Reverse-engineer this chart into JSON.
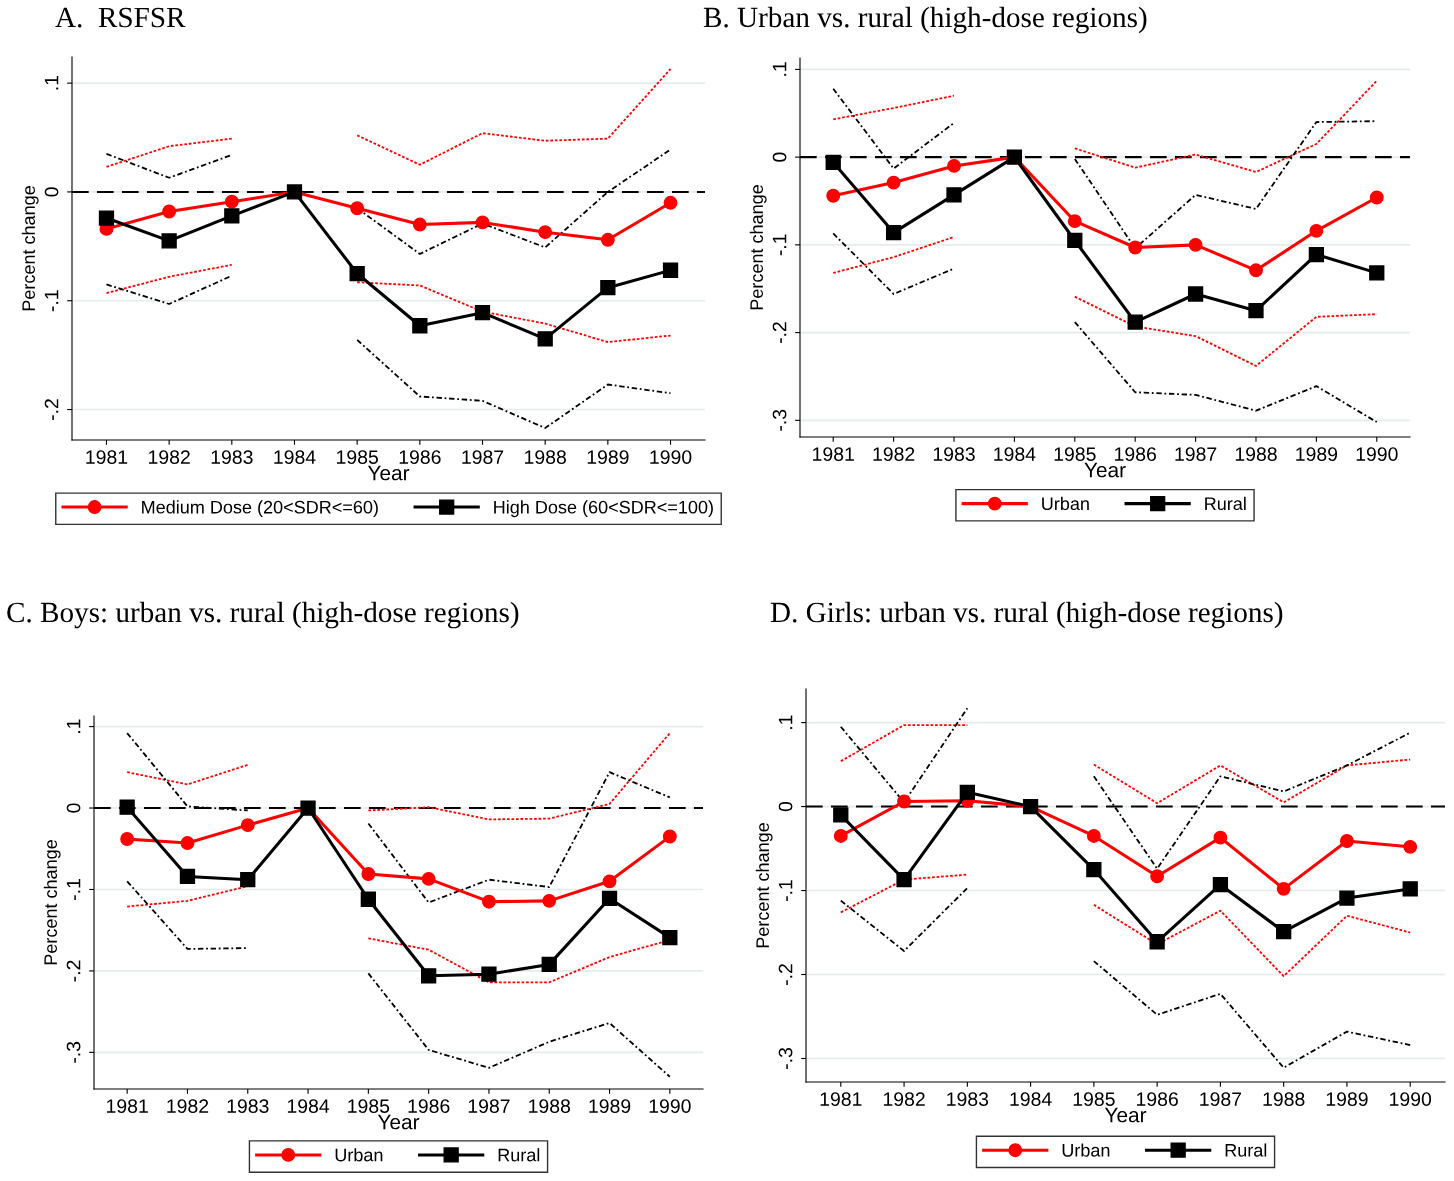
{
  "chart_data": [
    {
      "type": "line",
      "title": "A.  RSFSR",
      "xlabel": "Year",
      "ylabel": "Percent change",
      "categories": [
        "1981",
        "1982",
        "1983",
        "1984",
        "1985",
        "1986",
        "1987",
        "1988",
        "1989",
        "1990"
      ],
      "ylim": [
        -0.228,
        0.124
      ],
      "yticks": [
        {
          "value": 0.1,
          "label": ".1"
        },
        0,
        {
          "value": -0.1,
          "label": "-.1"
        },
        {
          "value": -0.2,
          "label": "-.2"
        }
      ],
      "grid": "y",
      "legend": "bottom",
      "ref_lines": [
        {
          "axis": "y",
          "value": 0,
          "color": "#000000",
          "line_style": "dashed"
        }
      ],
      "series": [
        {
          "name": "Medium Dose (20<SDR<=60)",
          "color": "#ff0000",
          "marker": "circle",
          "line_style": "solid",
          "values": [
            -0.034,
            -0.018,
            -0.009,
            0,
            -0.015,
            -0.03,
            -0.028,
            -0.037,
            -0.044,
            -0.01
          ]
        },
        {
          "name": "High Dose (60<SDR<=100)",
          "color": "#000000",
          "marker": "square",
          "line_style": "solid",
          "values": [
            -0.024,
            -0.045,
            -0.022,
            0,
            -0.075,
            -0.123,
            -0.111,
            -0.135,
            -0.088,
            -0.072
          ]
        },
        {
          "color": "#ff0000",
          "marker": "none",
          "line_style": "dotted",
          "values": [
            0.023,
            0.042,
            0.049,
            null,
            0.052,
            0.025,
            0.054,
            0.047,
            0.049,
            0.113
          ]
        },
        {
          "color": "#ff0000",
          "marker": "none",
          "line_style": "dotted",
          "values": [
            -0.093,
            -0.078,
            -0.067,
            null,
            -0.083,
            -0.086,
            -0.11,
            -0.121,
            -0.138,
            -0.132
          ]
        },
        {
          "color": "#000000",
          "marker": "none",
          "line_style": "dashed",
          "values": [
            0.035,
            0.013,
            0.034,
            null,
            -0.015,
            -0.057,
            -0.029,
            -0.051,
            0,
            0.039
          ]
        },
        {
          "color": "#000000",
          "marker": "none",
          "line_style": "dashed",
          "values": [
            -0.085,
            -0.103,
            -0.077,
            null,
            -0.136,
            -0.188,
            -0.192,
            -0.217,
            -0.177,
            -0.185
          ]
        }
      ]
    },
    {
      "type": "line",
      "title": "B. Urban vs. rural (high-dose regions)",
      "xlabel": "Year",
      "ylabel": "Percent change",
      "categories": [
        "1981",
        "1982",
        "1983",
        "1984",
        "1985",
        "1986",
        "1987",
        "1988",
        "1989",
        "1990"
      ],
      "ylim": [
        -0.319,
        0.113
      ],
      "yticks": [
        {
          "value": 0.1,
          "label": ".1"
        },
        0,
        {
          "value": -0.1,
          "label": "-.1"
        },
        {
          "value": -0.2,
          "label": "-.2"
        },
        {
          "value": -0.3,
          "label": "-.3"
        }
      ],
      "grid": "y",
      "legend": "bottom",
      "ref_lines": [
        {
          "axis": "y",
          "value": 0,
          "color": "#000000",
          "line_style": "dashed"
        }
      ],
      "series": [
        {
          "name": "Urban",
          "color": "#ff0000",
          "marker": "circle",
          "line_style": "solid",
          "values": [
            -0.044,
            -0.029,
            -0.01,
            0,
            -0.073,
            -0.103,
            -0.1,
            -0.129,
            -0.084,
            -0.046
          ]
        },
        {
          "name": "Rural",
          "color": "#000000",
          "marker": "square",
          "line_style": "solid",
          "values": [
            -0.006,
            -0.086,
            -0.043,
            0,
            -0.095,
            -0.188,
            -0.156,
            -0.175,
            -0.111,
            -0.132
          ]
        },
        {
          "color": "#ff0000",
          "marker": "none",
          "line_style": "dotted",
          "values": [
            0.043,
            0.056,
            0.07,
            null,
            0.01,
            -0.012,
            0.003,
            -0.017,
            0.015,
            0.087
          ]
        },
        {
          "color": "#ff0000",
          "marker": "none",
          "line_style": "dotted",
          "values": [
            -0.132,
            -0.114,
            -0.091,
            null,
            -0.159,
            -0.193,
            -0.204,
            -0.238,
            -0.182,
            -0.179
          ]
        },
        {
          "color": "#000000",
          "marker": "none",
          "line_style": "dashed",
          "values": [
            0.078,
            -0.013,
            0.039,
            null,
            -0.002,
            -0.104,
            -0.043,
            -0.059,
            0.04,
            0.041
          ]
        },
        {
          "color": "#000000",
          "marker": "none",
          "line_style": "dashed",
          "values": [
            -0.087,
            -0.156,
            -0.127,
            null,
            -0.188,
            -0.268,
            -0.271,
            -0.289,
            -0.261,
            -0.302
          ]
        }
      ]
    },
    {
      "type": "line",
      "title": "C. Boys: urban vs. rural (high-dose regions)",
      "xlabel": "Year",
      "ylabel": "Percent change",
      "categories": [
        "1981",
        "1982",
        "1983",
        "1984",
        "1985",
        "1986",
        "1987",
        "1988",
        "1989",
        "1990"
      ],
      "ylim": [
        -0.345,
        0.113
      ],
      "yticks": [
        {
          "value": 0.1,
          "label": ".1"
        },
        0,
        {
          "value": -0.1,
          "label": "-.1"
        },
        {
          "value": -0.2,
          "label": "-.2"
        },
        {
          "value": -0.3,
          "label": "-.3"
        }
      ],
      "grid": "y",
      "legend": "bottom",
      "ref_lines": [
        {
          "axis": "y",
          "value": 0,
          "color": "#000000",
          "line_style": "dashed"
        }
      ],
      "series": [
        {
          "name": "Urban",
          "color": "#ff0000",
          "marker": "circle",
          "line_style": "solid",
          "values": [
            -0.038,
            -0.043,
            -0.021,
            0,
            -0.081,
            -0.087,
            -0.115,
            -0.114,
            -0.09,
            -0.035
          ]
        },
        {
          "name": "Rural",
          "color": "#000000",
          "marker": "square",
          "line_style": "solid",
          "values": [
            0.001,
            -0.084,
            -0.088,
            0,
            -0.112,
            -0.206,
            -0.204,
            -0.192,
            -0.111,
            -0.159
          ]
        },
        {
          "color": "#ff0000",
          "marker": "none",
          "line_style": "dotted",
          "values": [
            0.044,
            0.029,
            0.053,
            null,
            -0.003,
            0.001,
            -0.014,
            -0.013,
            0.005,
            0.092
          ]
        },
        {
          "color": "#ff0000",
          "marker": "none",
          "line_style": "dotted",
          "values": [
            -0.121,
            -0.114,
            -0.096,
            null,
            -0.16,
            -0.174,
            -0.214,
            -0.214,
            -0.183,
            -0.162
          ]
        },
        {
          "color": "#000000",
          "marker": "none",
          "line_style": "dashed",
          "values": [
            0.092,
            0.002,
            -0.003,
            null,
            -0.019,
            -0.116,
            -0.088,
            -0.097,
            0.044,
            0.013
          ]
        },
        {
          "color": "#000000",
          "marker": "none",
          "line_style": "dashed",
          "values": [
            -0.09,
            -0.173,
            -0.172,
            null,
            -0.203,
            -0.297,
            -0.319,
            -0.287,
            -0.264,
            -0.33
          ]
        }
      ]
    },
    {
      "type": "line",
      "title": "D. Girls: urban vs. rural (high-dose regions)",
      "xlabel": "Year",
      "ylabel": "Percent change",
      "categories": [
        "1981",
        "1982",
        "1983",
        "1984",
        "1985",
        "1986",
        "1987",
        "1988",
        "1989",
        "1990"
      ],
      "ylim": [
        -0.328,
        0.14
      ],
      "yticks": [
        {
          "value": 0.1,
          "label": ".1"
        },
        0,
        {
          "value": -0.1,
          "label": "-.1"
        },
        {
          "value": -0.2,
          "label": "-.2"
        },
        {
          "value": -0.3,
          "label": "-.3"
        }
      ],
      "grid": "y",
      "legend": "bottom",
      "ref_lines": [
        {
          "axis": "y",
          "value": 0,
          "color": "#000000",
          "line_style": "dashed"
        }
      ],
      "series": [
        {
          "name": "Urban",
          "color": "#ff0000",
          "marker": "circle",
          "line_style": "solid",
          "values": [
            -0.035,
            0.006,
            0.007,
            0,
            -0.035,
            -0.083,
            -0.037,
            -0.098,
            -0.041,
            -0.048
          ]
        },
        {
          "name": "Rural",
          "color": "#000000",
          "marker": "square",
          "line_style": "solid",
          "values": [
            -0.01,
            -0.087,
            0.017,
            0,
            -0.075,
            -0.161,
            -0.093,
            -0.149,
            -0.109,
            -0.098
          ]
        },
        {
          "color": "#ff0000",
          "marker": "none",
          "line_style": "dotted",
          "values": [
            0.054,
            0.097,
            0.097,
            null,
            0.05,
            0.004,
            0.049,
            0.005,
            0.049,
            0.056
          ]
        },
        {
          "color": "#ff0000",
          "marker": "none",
          "line_style": "dotted",
          "values": [
            -0.126,
            -0.087,
            -0.081,
            null,
            -0.117,
            -0.164,
            -0.124,
            -0.202,
            -0.13,
            -0.15
          ]
        },
        {
          "color": "#000000",
          "marker": "none",
          "line_style": "dashed",
          "values": [
            0.095,
            0.005,
            0.117,
            null,
            0.036,
            -0.074,
            0.036,
            0.018,
            0.049,
            0.088
          ]
        },
        {
          "color": "#000000",
          "marker": "none",
          "line_style": "dashed",
          "values": [
            -0.112,
            -0.172,
            -0.097,
            null,
            -0.184,
            -0.248,
            -0.223,
            -0.311,
            -0.268,
            -0.284
          ]
        }
      ]
    }
  ]
}
